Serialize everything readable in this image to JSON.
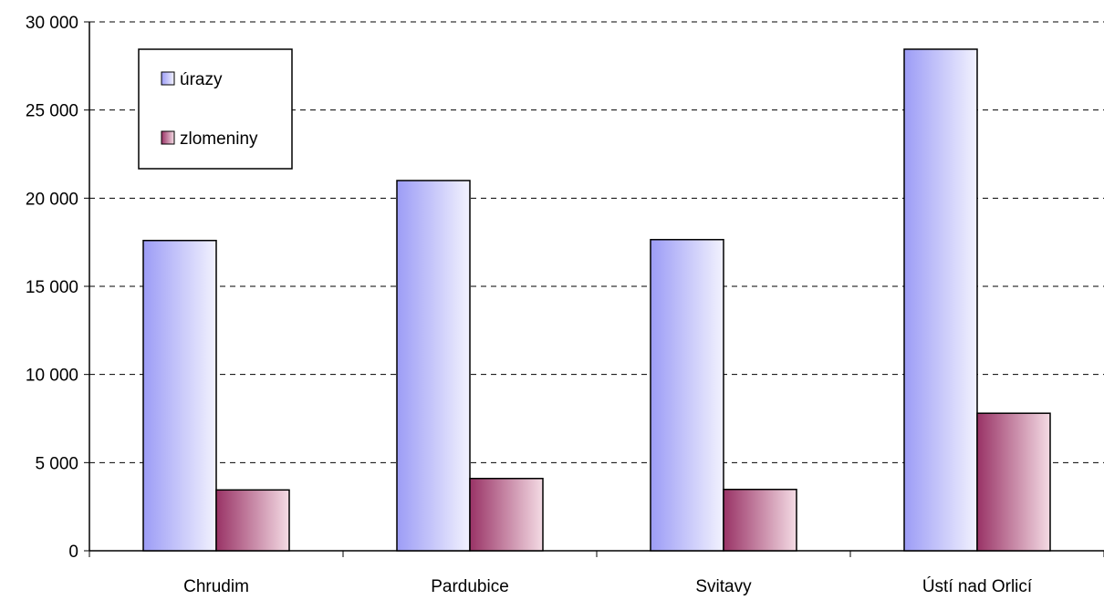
{
  "chart_data": {
    "type": "bar",
    "title": "",
    "xlabel": "",
    "ylabel": "",
    "categories": [
      "Chrudim",
      "Pardubice",
      "Svitavy",
      "Ústí nad Orlicí"
    ],
    "series": [
      {
        "name": "úrazy",
        "values": [
          17600,
          21000,
          17650,
          28450
        ],
        "color": "#9c9cf6"
      },
      {
        "name": "zlomeniny",
        "values": [
          3450,
          4100,
          3480,
          7800
        ],
        "color": "#993366"
      }
    ],
    "ylim": [
      0,
      30000
    ],
    "yticks": [
      0,
      5000,
      10000,
      15000,
      20000,
      25000,
      30000
    ],
    "ytick_labels": [
      "0",
      "5 000",
      "10 000",
      "15 000",
      "20 000",
      "25 000",
      "30 000"
    ],
    "grid": true,
    "grid_style": "dashed",
    "legend_position": "top-left"
  }
}
